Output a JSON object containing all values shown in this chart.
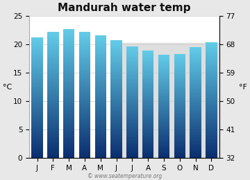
{
  "title": "Mandurah water temp",
  "months": [
    "J",
    "F",
    "M",
    "A",
    "M",
    "J",
    "J",
    "A",
    "S",
    "O",
    "N",
    "D"
  ],
  "values_c": [
    21.2,
    22.2,
    22.7,
    22.2,
    21.6,
    20.7,
    19.7,
    18.9,
    18.2,
    18.3,
    19.5,
    20.4
  ],
  "ylim_c": [
    0,
    25
  ],
  "yticks_c": [
    0,
    5,
    10,
    15,
    20,
    25
  ],
  "yticks_f": [
    32,
    41,
    50,
    59,
    68,
    77
  ],
  "ylabel_left": "°C",
  "ylabel_right": "°F",
  "bar_color_top": "#62cce8",
  "bar_color_bottom": "#0a2d6e",
  "background_color": "#e8e8e8",
  "plot_bg_color": "#ffffff",
  "grey_band_color": "#dedede",
  "grey_band_level": 20.3,
  "watermark": "© www.seatemperature.org",
  "title_fontsize": 11,
  "axis_fontsize": 7.5,
  "label_fontsize": 8
}
